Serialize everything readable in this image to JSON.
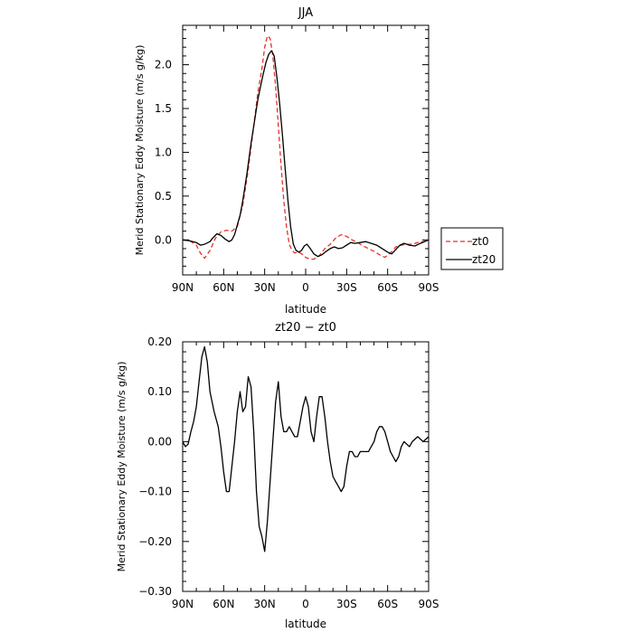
{
  "chart_data": [
    {
      "type": "line",
      "title": "JJA",
      "xlabel": "latitude",
      "ylabel": "Merid Stationary Eddy Moisture (m/s g/kg)",
      "xlim": [
        90,
        -90
      ],
      "ylim": [
        -0.4,
        2.45
      ],
      "xticks": [
        90,
        60,
        30,
        0,
        -30,
        -60,
        -90
      ],
      "xtick_labels": [
        "90N",
        "60N",
        "30N",
        "0",
        "30S",
        "60S",
        "90S"
      ],
      "yticks": [
        0,
        0.5,
        1.0,
        1.5,
        2.0
      ],
      "ytick_labels": [
        "0.0",
        "0.5",
        "1.0",
        "1.5",
        "2.0"
      ],
      "legend_position": "right",
      "series": [
        {
          "name": "zt0",
          "color": "#e8302a",
          "dash": "dashed",
          "x": [
            90,
            85,
            80,
            77,
            74,
            70,
            66,
            62,
            58,
            54,
            50,
            46,
            42,
            38,
            35,
            32,
            30,
            28,
            26,
            24,
            22,
            20,
            18,
            16,
            14,
            12,
            10,
            8,
            5,
            2,
            0,
            -3,
            -6,
            -10,
            -14,
            -18,
            -22,
            -26,
            -30,
            -34,
            -38,
            -42,
            -46,
            -50,
            -54,
            -58,
            -62,
            -66,
            -70,
            -74,
            -78,
            -82,
            -86,
            -90
          ],
          "y": [
            0.0,
            -0.01,
            -0.06,
            -0.15,
            -0.21,
            -0.12,
            0.02,
            0.09,
            0.11,
            0.1,
            0.15,
            0.4,
            0.8,
            1.3,
            1.68,
            1.95,
            2.2,
            2.33,
            2.3,
            2.1,
            1.75,
            1.3,
            0.85,
            0.45,
            0.15,
            -0.05,
            -0.12,
            -0.15,
            -0.14,
            -0.17,
            -0.2,
            -0.22,
            -0.22,
            -0.18,
            -0.1,
            -0.05,
            0.02,
            0.06,
            0.04,
            0.0,
            -0.03,
            -0.07,
            -0.1,
            -0.13,
            -0.17,
            -0.2,
            -0.15,
            -0.08,
            -0.06,
            -0.05,
            -0.05,
            -0.03,
            -0.02,
            0.0
          ]
        },
        {
          "name": "zt20",
          "color": "#000000",
          "dash": "solid",
          "x": [
            90,
            85,
            80,
            77,
            74,
            70,
            68,
            65,
            62,
            59,
            56,
            54,
            52,
            50,
            48,
            46,
            43,
            40,
            37,
            35,
            33,
            31,
            29,
            27,
            25,
            23,
            21,
            19,
            17,
            15,
            13,
            11,
            9,
            7,
            5,
            3,
            1,
            -1,
            -3,
            -6,
            -9,
            -12,
            -15,
            -18,
            -21,
            -24,
            -27,
            -30,
            -33,
            -36,
            -40,
            -44,
            -48,
            -52,
            -56,
            -60,
            -63,
            -66,
            -69,
            -72,
            -76,
            -80,
            -84,
            -87,
            -90
          ],
          "y": [
            0.0,
            -0.01,
            -0.03,
            -0.06,
            -0.05,
            -0.02,
            0.02,
            0.07,
            0.05,
            0.01,
            -0.02,
            0.0,
            0.06,
            0.17,
            0.28,
            0.45,
            0.75,
            1.1,
            1.4,
            1.6,
            1.75,
            1.9,
            2.03,
            2.12,
            2.16,
            2.1,
            1.85,
            1.55,
            1.2,
            0.82,
            0.45,
            0.15,
            -0.05,
            -0.12,
            -0.14,
            -0.12,
            -0.07,
            -0.05,
            -0.09,
            -0.16,
            -0.19,
            -0.17,
            -0.13,
            -0.1,
            -0.08,
            -0.1,
            -0.09,
            -0.06,
            -0.03,
            -0.04,
            -0.03,
            -0.02,
            -0.04,
            -0.06,
            -0.1,
            -0.14,
            -0.16,
            -0.11,
            -0.06,
            -0.04,
            -0.06,
            -0.07,
            -0.04,
            -0.02,
            0.0
          ]
        }
      ]
    },
    {
      "type": "line",
      "title": "zt20 − zt0",
      "xlabel": "latitude",
      "ylabel": "Merid Stationary Eddy Moisture (m/s g/kg)",
      "xlim": [
        90,
        -90
      ],
      "ylim": [
        -0.3,
        0.2
      ],
      "xticks": [
        90,
        60,
        30,
        0,
        -30,
        -60,
        -90
      ],
      "xtick_labels": [
        "90N",
        "60N",
        "30N",
        "0",
        "30S",
        "60S",
        "90S"
      ],
      "yticks": [
        -0.3,
        -0.2,
        -0.1,
        0.0,
        0.1,
        0.2
      ],
      "ytick_labels": [
        "−0.30",
        "−0.20",
        "−0.10",
        "0.00",
        "0.10",
        "0.20"
      ],
      "series": [
        {
          "name": "",
          "color": "#000000",
          "dash": "solid",
          "x": [
            90,
            88,
            86,
            84,
            82,
            80,
            78,
            76,
            74,
            72,
            70,
            67,
            64,
            62,
            60,
            58,
            56,
            54,
            52,
            50,
            48,
            46,
            44,
            42,
            40,
            38,
            36,
            34,
            32,
            30,
            28,
            26,
            24,
            22,
            20,
            18,
            16,
            14,
            12,
            10,
            8,
            6,
            4,
            2,
            0,
            -2,
            -4,
            -6,
            -8,
            -10,
            -12,
            -14,
            -16,
            -18,
            -20,
            -22,
            -24,
            -26,
            -28,
            -30,
            -32,
            -34,
            -36,
            -38,
            -40,
            -42,
            -44,
            -46,
            -48,
            -50,
            -52,
            -54,
            -56,
            -58,
            -60,
            -62,
            -64,
            -66,
            -68,
            -70,
            -72,
            -74,
            -76,
            -78,
            -80,
            -82,
            -84,
            -86,
            -88,
            -90
          ],
          "y": [
            0.0,
            -0.01,
            -0.005,
            0.02,
            0.04,
            0.07,
            0.12,
            0.17,
            0.19,
            0.16,
            0.1,
            0.06,
            0.03,
            -0.01,
            -0.06,
            -0.1,
            -0.1,
            -0.05,
            0.0,
            0.06,
            0.1,
            0.06,
            0.07,
            0.13,
            0.11,
            0.02,
            -0.1,
            -0.17,
            -0.19,
            -0.22,
            -0.16,
            -0.08,
            0.0,
            0.08,
            0.12,
            0.05,
            0.02,
            0.02,
            0.03,
            0.02,
            0.01,
            0.01,
            0.04,
            0.07,
            0.09,
            0.07,
            0.02,
            0.0,
            0.05,
            0.09,
            0.09,
            0.05,
            0.0,
            -0.04,
            -0.07,
            -0.08,
            -0.09,
            -0.1,
            -0.09,
            -0.05,
            -0.02,
            -0.02,
            -0.03,
            -0.03,
            -0.02,
            -0.02,
            -0.02,
            -0.02,
            -0.01,
            0.0,
            0.02,
            0.03,
            0.03,
            0.02,
            0.0,
            -0.02,
            -0.03,
            -0.04,
            -0.03,
            -0.01,
            0.0,
            -0.005,
            -0.01,
            0.0,
            0.005,
            0.01,
            0.005,
            0.0,
            0.005,
            0.01
          ]
        }
      ]
    }
  ]
}
